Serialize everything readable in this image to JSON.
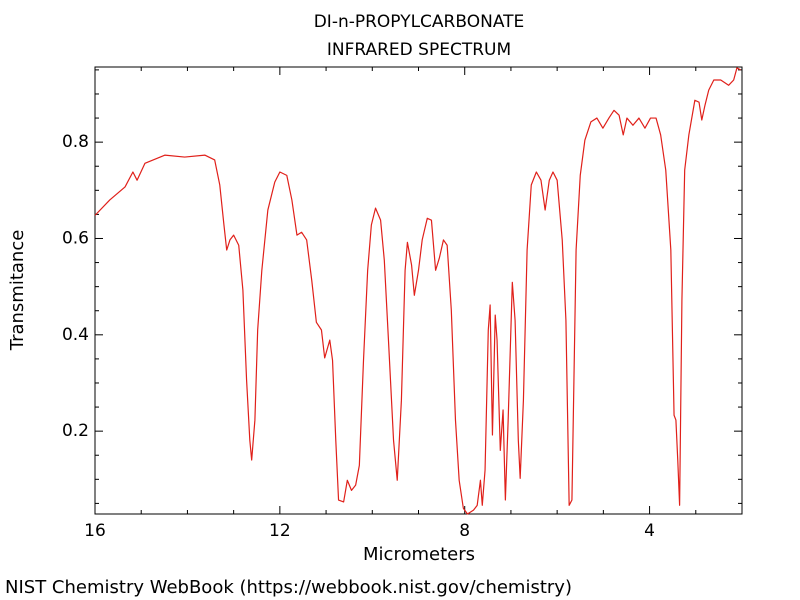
{
  "chart_data": {
    "type": "line",
    "title": "DI-n-PROPYLCARBONATE",
    "subtitle": "INFRARED SPECTRUM",
    "x_label": "Micrometers",
    "y_label": "Transmitance",
    "footer": "NIST Chemistry WebBook (https://webbook.nist.gov/chemistry)",
    "color": "#e0201a",
    "xlim": [
      16,
      2.0
    ],
    "ylim": [
      0.028,
      0.956
    ],
    "xticks": [
      16,
      12,
      8,
      4
    ],
    "yticks": [
      0.2,
      0.4,
      0.6,
      0.8
    ],
    "xminorticks": [
      15,
      14,
      13,
      11,
      10,
      9,
      7,
      6,
      5,
      3
    ],
    "yminorticks": [
      0.05,
      0.1,
      0.15,
      0.25,
      0.3,
      0.35,
      0.45,
      0.5,
      0.55,
      0.65,
      0.7,
      0.75,
      0.85,
      0.9,
      0.95
    ],
    "x": [
      16.0,
      15.68,
      15.35,
      15.18,
      15.09,
      14.92,
      14.49,
      14.06,
      13.62,
      13.41,
      13.3,
      13.21,
      13.15,
      13.08,
      13.0,
      12.89,
      12.8,
      12.72,
      12.65,
      12.61,
      12.54,
      12.48,
      12.39,
      12.26,
      12.11,
      12.0,
      11.85,
      11.74,
      11.63,
      11.53,
      11.42,
      11.31,
      11.21,
      11.1,
      11.03,
      10.92,
      10.86,
      10.79,
      10.73,
      10.62,
      10.54,
      10.45,
      10.36,
      10.28,
      10.19,
      10.1,
      10.02,
      9.93,
      9.82,
      9.74,
      9.65,
      9.54,
      9.46,
      9.37,
      9.29,
      9.24,
      9.15,
      9.09,
      9.0,
      8.92,
      8.81,
      8.72,
      8.63,
      8.55,
      8.46,
      8.38,
      8.29,
      8.2,
      8.12,
      8.03,
      7.94,
      7.81,
      7.73,
      7.66,
      7.62,
      7.56,
      7.49,
      7.45,
      7.4,
      7.34,
      7.3,
      7.23,
      7.17,
      7.12,
      7.06,
      6.97,
      6.91,
      6.84,
      6.8,
      6.73,
      6.65,
      6.56,
      6.45,
      6.35,
      6.26,
      6.17,
      6.09,
      6.0,
      5.89,
      5.81,
      5.74,
      5.68,
      5.59,
      5.5,
      5.4,
      5.27,
      5.14,
      5.01,
      4.88,
      4.77,
      4.66,
      4.57,
      4.49,
      4.36,
      4.23,
      4.1,
      3.98,
      3.86,
      3.76,
      3.65,
      3.54,
      3.47,
      3.43,
      3.39,
      3.35,
      3.3,
      3.24,
      3.15,
      3.02,
      2.93,
      2.87,
      2.8,
      2.72,
      2.61,
      2.46,
      2.29,
      2.18,
      2.11,
      2.03
    ],
    "values": [
      0.648,
      0.68,
      0.707,
      0.738,
      0.721,
      0.756,
      0.773,
      0.769,
      0.773,
      0.763,
      0.711,
      0.628,
      0.576,
      0.597,
      0.607,
      0.586,
      0.493,
      0.306,
      0.181,
      0.14,
      0.223,
      0.41,
      0.534,
      0.659,
      0.717,
      0.738,
      0.731,
      0.68,
      0.607,
      0.613,
      0.597,
      0.513,
      0.426,
      0.41,
      0.352,
      0.389,
      0.347,
      0.181,
      0.057,
      0.053,
      0.098,
      0.077,
      0.088,
      0.129,
      0.347,
      0.534,
      0.628,
      0.663,
      0.638,
      0.555,
      0.389,
      0.181,
      0.098,
      0.264,
      0.534,
      0.592,
      0.545,
      0.482,
      0.534,
      0.597,
      0.642,
      0.638,
      0.534,
      0.559,
      0.597,
      0.586,
      0.451,
      0.223,
      0.098,
      0.04,
      0.028,
      0.036,
      0.046,
      0.098,
      0.046,
      0.119,
      0.41,
      0.462,
      0.192,
      0.441,
      0.389,
      0.16,
      0.244,
      0.057,
      0.223,
      0.509,
      0.43,
      0.181,
      0.102,
      0.264,
      0.576,
      0.711,
      0.738,
      0.721,
      0.659,
      0.721,
      0.738,
      0.721,
      0.597,
      0.43,
      0.046,
      0.057,
      0.576,
      0.731,
      0.804,
      0.842,
      0.85,
      0.829,
      0.85,
      0.866,
      0.856,
      0.815,
      0.85,
      0.835,
      0.85,
      0.829,
      0.85,
      0.85,
      0.815,
      0.742,
      0.576,
      0.233,
      0.223,
      0.14,
      0.046,
      0.472,
      0.742,
      0.815,
      0.887,
      0.883,
      0.846,
      0.877,
      0.908,
      0.929,
      0.929,
      0.918,
      0.929,
      0.954,
      0.95
    ]
  }
}
